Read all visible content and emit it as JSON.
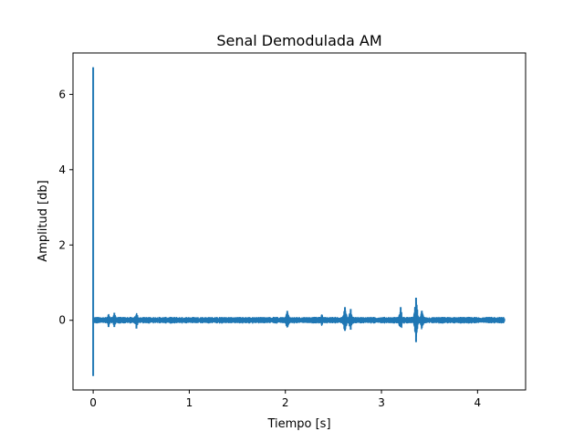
{
  "chart_data": {
    "type": "line",
    "title": "Senal Demodulada AM",
    "xlabel": "Tiempo [s]",
    "ylabel": "Amplitud [db]",
    "xlim": [
      -0.21,
      4.5
    ],
    "ylim": [
      -1.85,
      7.1
    ],
    "xticks": [
      0,
      1,
      2,
      3,
      4
    ],
    "yticks": [
      0,
      2,
      4,
      6
    ],
    "grid": false,
    "legend": "none",
    "series": [
      {
        "color": "#1f77b4",
        "x_range": [
          0,
          4.28
        ],
        "baseline": 0,
        "noise_amplitude": 0.05,
        "features": [
          {
            "x": 0.0,
            "min": -1.48,
            "max": 6.72,
            "label": "initial spike"
          },
          {
            "x": 0.16,
            "min": -0.18,
            "max": 0.08
          },
          {
            "x": 0.22,
            "min": -0.18,
            "max": 0.2
          },
          {
            "x": 0.45,
            "min": -0.22,
            "max": 0.15
          },
          {
            "x": 2.02,
            "min": -0.17,
            "max": 0.25
          },
          {
            "x": 2.38,
            "min": -0.12,
            "max": 0.15
          },
          {
            "x": 2.62,
            "min": -0.28,
            "max": 0.35
          },
          {
            "x": 2.68,
            "min": -0.25,
            "max": 0.3
          },
          {
            "x": 3.2,
            "min": -0.12,
            "max": 0.35
          },
          {
            "x": 3.36,
            "min": -0.58,
            "max": 0.6
          },
          {
            "x": 3.42,
            "min": -0.2,
            "max": 0.25
          }
        ]
      }
    ]
  }
}
